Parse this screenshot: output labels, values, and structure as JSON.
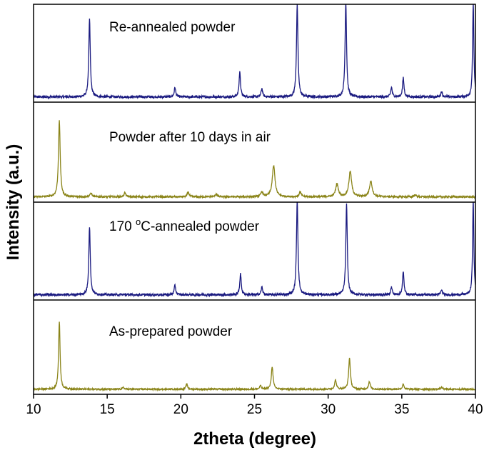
{
  "chart_data": {
    "type": "line",
    "xlabel": "2theta (degree)",
    "ylabel": "Intensity (a.u.)",
    "xlim": [
      10,
      40
    ],
    "x_ticks": [
      "10",
      "15",
      "20",
      "25",
      "30",
      "35",
      "40"
    ],
    "y_ticks": "none",
    "grid": false,
    "layout": "four stacked panels sharing the x axis",
    "panels": [
      {
        "label_main": "Re-annealed powder",
        "label_sup": "",
        "label_rest": "",
        "color": "#1a1a80",
        "baseline": 0.04,
        "noise": 0.012,
        "peaks": [
          {
            "x": 13.8,
            "height": 0.82,
            "width": 0.06
          },
          {
            "x": 19.6,
            "height": 0.1,
            "width": 0.06
          },
          {
            "x": 24.0,
            "height": 0.26,
            "width": 0.06
          },
          {
            "x": 25.5,
            "height": 0.09,
            "width": 0.06
          },
          {
            "x": 27.9,
            "height": 0.97,
            "width": 0.06
          },
          {
            "x": 31.2,
            "height": 1.0,
            "width": 0.06
          },
          {
            "x": 34.3,
            "height": 0.1,
            "width": 0.06
          },
          {
            "x": 35.1,
            "height": 0.2,
            "width": 0.06
          },
          {
            "x": 37.7,
            "height": 0.06,
            "width": 0.06
          },
          {
            "x": 39.85,
            "height": 1.0,
            "width": 0.05
          }
        ]
      },
      {
        "label_main": "Powder after 10 days in air",
        "label_sup": "",
        "label_rest": "",
        "color": "#8a8418",
        "baseline": 0.04,
        "noise": 0.009,
        "peaks": [
          {
            "x": 11.75,
            "height": 0.78,
            "width": 0.07
          },
          {
            "x": 13.9,
            "height": 0.04,
            "width": 0.07
          },
          {
            "x": 16.2,
            "height": 0.04,
            "width": 0.07
          },
          {
            "x": 20.5,
            "height": 0.05,
            "width": 0.07
          },
          {
            "x": 22.4,
            "height": 0.03,
            "width": 0.07
          },
          {
            "x": 25.5,
            "height": 0.05,
            "width": 0.08
          },
          {
            "x": 26.3,
            "height": 0.32,
            "width": 0.11
          },
          {
            "x": 28.1,
            "height": 0.05,
            "width": 0.08
          },
          {
            "x": 30.6,
            "height": 0.13,
            "width": 0.11
          },
          {
            "x": 31.5,
            "height": 0.26,
            "width": 0.11
          },
          {
            "x": 32.9,
            "height": 0.16,
            "width": 0.11
          },
          {
            "x": 35.9,
            "height": 0.02,
            "width": 0.08
          }
        ]
      },
      {
        "label_main": "170 ",
        "label_sup": "o",
        "label_rest": "C-annealed powder",
        "color": "#1a1a80",
        "baseline": 0.04,
        "noise": 0.012,
        "peaks": [
          {
            "x": 13.8,
            "height": 0.72,
            "width": 0.06
          },
          {
            "x": 19.6,
            "height": 0.1,
            "width": 0.06
          },
          {
            "x": 24.05,
            "height": 0.22,
            "width": 0.06
          },
          {
            "x": 25.5,
            "height": 0.08,
            "width": 0.06
          },
          {
            "x": 27.9,
            "height": 1.0,
            "width": 0.06
          },
          {
            "x": 31.25,
            "height": 0.95,
            "width": 0.06
          },
          {
            "x": 34.3,
            "height": 0.08,
            "width": 0.06
          },
          {
            "x": 35.1,
            "height": 0.24,
            "width": 0.06
          },
          {
            "x": 37.7,
            "height": 0.05,
            "width": 0.06
          },
          {
            "x": 39.85,
            "height": 1.0,
            "width": 0.05
          }
        ]
      },
      {
        "label_main": "As-prepared powder",
        "label_sup": "",
        "label_rest": "",
        "color": "#8a8418",
        "baseline": 0.04,
        "noise": 0.008,
        "peaks": [
          {
            "x": 11.75,
            "height": 0.74,
            "width": 0.06
          },
          {
            "x": 16.1,
            "height": 0.02,
            "width": 0.06
          },
          {
            "x": 20.4,
            "height": 0.06,
            "width": 0.06
          },
          {
            "x": 25.4,
            "height": 0.04,
            "width": 0.06
          },
          {
            "x": 26.2,
            "height": 0.25,
            "width": 0.07
          },
          {
            "x": 30.5,
            "height": 0.1,
            "width": 0.07
          },
          {
            "x": 31.45,
            "height": 0.34,
            "width": 0.07
          },
          {
            "x": 32.8,
            "height": 0.08,
            "width": 0.07
          },
          {
            "x": 35.1,
            "height": 0.06,
            "width": 0.06
          },
          {
            "x": 37.7,
            "height": 0.02,
            "width": 0.06
          }
        ]
      }
    ]
  }
}
